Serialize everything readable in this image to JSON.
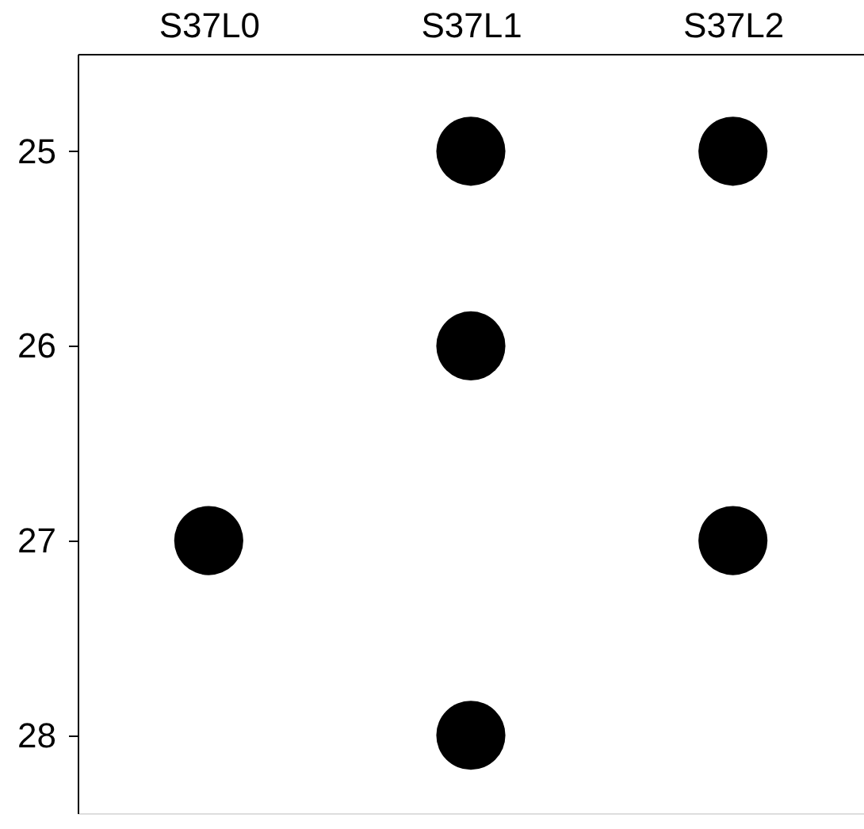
{
  "chart_data": {
    "type": "scatter",
    "categories": [
      "S37L0",
      "S37L1",
      "S37L2"
    ],
    "series": [
      {
        "color": "#000000",
        "x": [
          "S37L0",
          "S37L1",
          "S37L1",
          "S37L1",
          "S37L2",
          "S37L2"
        ],
        "values": [
          27,
          25,
          26,
          28,
          25,
          27
        ]
      }
    ],
    "ylim": [
      28.4,
      24.5
    ],
    "yticks": [
      25,
      26,
      27,
      28
    ],
    "grid": false,
    "marker": "circle"
  }
}
